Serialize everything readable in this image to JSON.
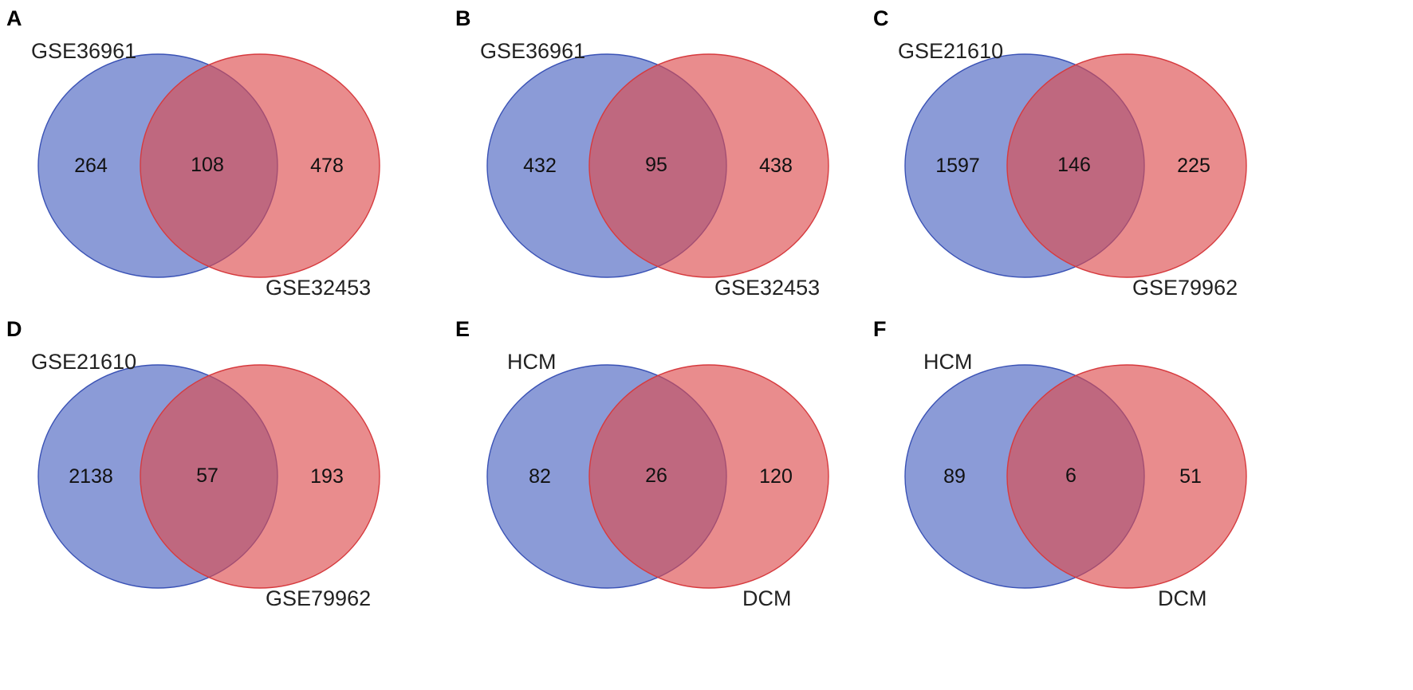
{
  "panels": [
    {
      "letter": "A",
      "left_label": "GSE36961",
      "right_label": "GSE32453",
      "left_only": "264",
      "both": "108",
      "right_only": "478"
    },
    {
      "letter": "B",
      "left_label": "GSE36961",
      "right_label": "GSE32453",
      "left_only": "432",
      "both": "95",
      "right_only": "438"
    },
    {
      "letter": "C",
      "left_label": "GSE21610",
      "right_label": "GSE79962",
      "left_only": "1597",
      "both": "146",
      "right_only": "225"
    },
    {
      "letter": "D",
      "left_label": "GSE21610",
      "right_label": "GSE79962",
      "left_only": "2138",
      "both": "57",
      "right_only": "193"
    },
    {
      "letter": "E",
      "left_label": "HCM",
      "right_label": "DCM",
      "left_only": "82",
      "both": "26",
      "right_only": "120"
    },
    {
      "letter": "F",
      "left_label": "HCM",
      "right_label": "DCM",
      "left_only": "89",
      "both": "6",
      "right_only": "51"
    }
  ],
  "colors": {
    "left_set": "#4a62c0",
    "right_set": "#dc4b4c"
  }
}
